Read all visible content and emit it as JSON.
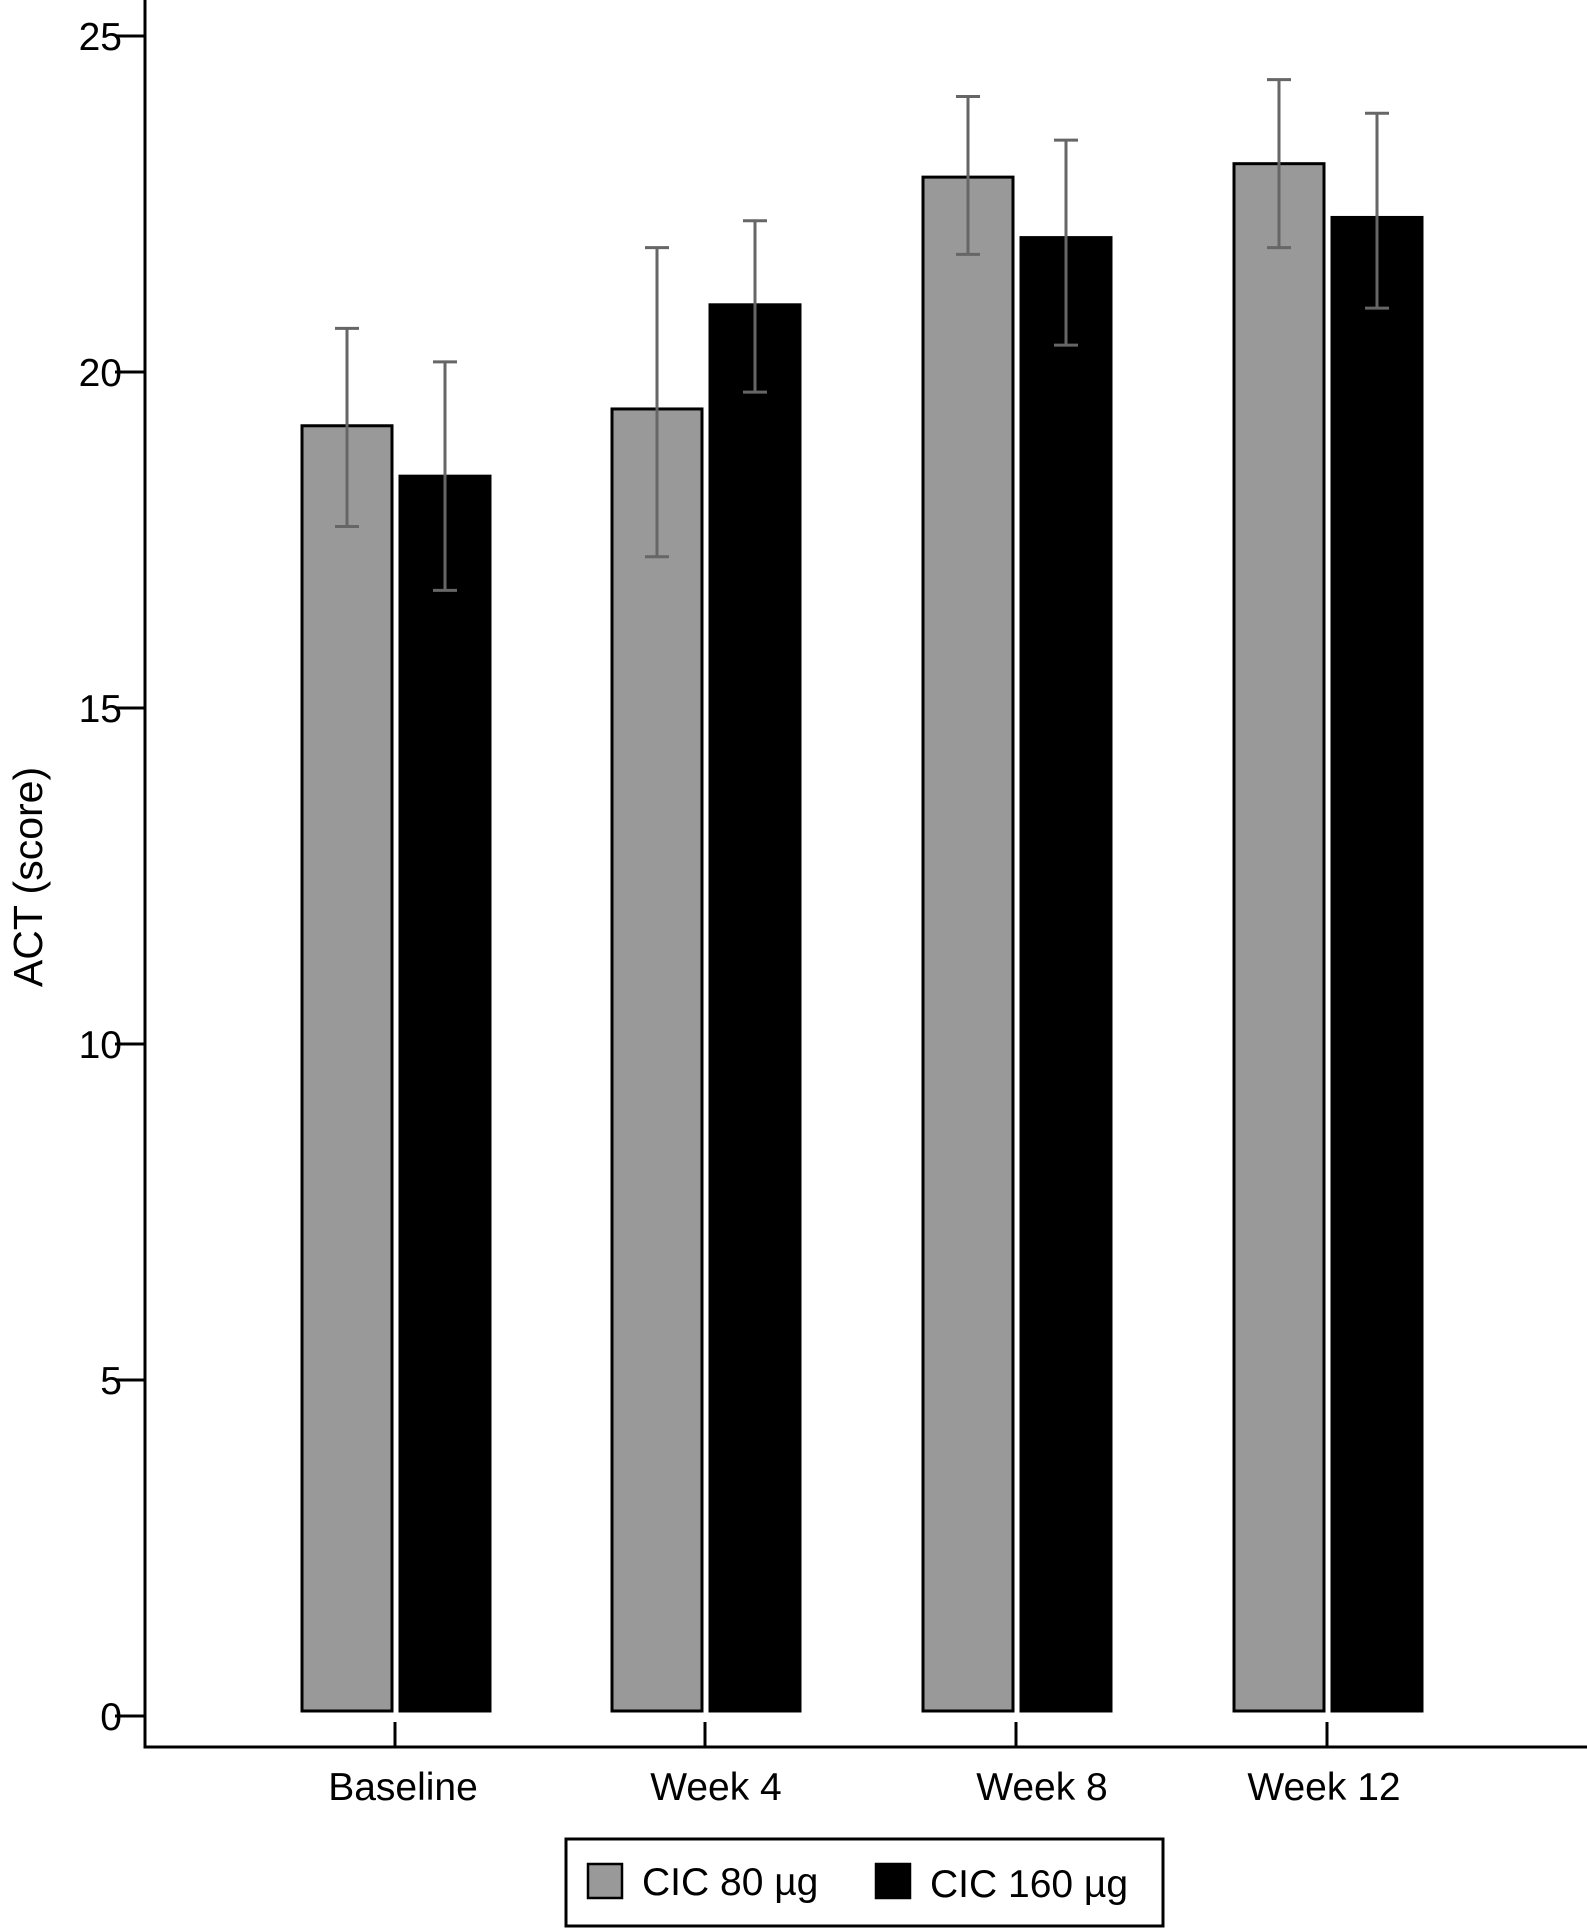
{
  "chart_data": {
    "type": "bar",
    "title": "",
    "xlabel": "",
    "ylabel": "ACT (score)",
    "ylim": [
      0,
      25
    ],
    "yticks": [
      0,
      5,
      10,
      15,
      20,
      25
    ],
    "grid": false,
    "legend_position": "bottom-center",
    "categories": [
      "Baseline",
      "Week 4",
      "Week 8",
      "Week 12"
    ],
    "series": [
      {
        "name": "CIC 80 µg",
        "color": "#999999",
        "values": [
          19.2,
          19.45,
          22.9,
          23.1
        ],
        "error_low": [
          17.7,
          17.25,
          21.75,
          21.85
        ],
        "error_high": [
          20.65,
          21.85,
          24.1,
          24.35
        ]
      },
      {
        "name": "CIC 160 µg",
        "color": "#000000",
        "values": [
          18.45,
          21.0,
          22.0,
          22.3
        ],
        "error_low": [
          16.75,
          19.7,
          20.4,
          20.95
        ],
        "error_high": [
          20.15,
          22.25,
          23.45,
          23.85
        ]
      }
    ],
    "error_bar_color": "#666666"
  }
}
